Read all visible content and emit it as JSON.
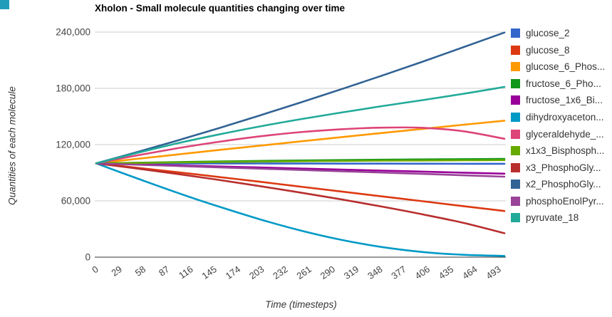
{
  "ui": {
    "background": "#ffffff",
    "corner_square_color": "#1f9cba",
    "gridline_color": "#cccccc",
    "baseline_color": "#333333",
    "tick_label_color": "#444444",
    "title_color": "#000000",
    "axis_title_color": "#333333",
    "legend_text_color": "#333333"
  },
  "chart_data": {
    "type": "line",
    "title": "Xholon - Small molecule quantities changing over time",
    "xlabel": "Time (timesteps)",
    "ylabel": "Quantities of each molecule",
    "grid": true,
    "legend_position": "right",
    "xlim": [
      0,
      502
    ],
    "ylim": [
      0,
      240000
    ],
    "x_tick_labels": [
      "0",
      "29",
      "58",
      "87",
      "116",
      "145",
      "174",
      "203",
      "232",
      "261",
      "290",
      "319",
      "348",
      "377",
      "406",
      "435",
      "464",
      "493"
    ],
    "x_ticks": [
      0,
      29,
      58,
      87,
      116,
      145,
      174,
      203,
      232,
      261,
      290,
      319,
      348,
      377,
      406,
      435,
      464,
      493
    ],
    "y_ticks": [
      0,
      60000,
      120000,
      180000,
      240000
    ],
    "y_tick_labels": [
      "0",
      "60,000",
      "120,000",
      "180,000",
      "240,000"
    ],
    "x": [
      0,
      50,
      100,
      150,
      200,
      250,
      300,
      350,
      400,
      450,
      500
    ],
    "series": [
      {
        "name": "glucose_2",
        "color": "#3366CC",
        "values": [
          100000,
          100000,
          99950,
          99900,
          99850,
          99800,
          99750,
          99700,
          99650,
          99600,
          99550
        ]
      },
      {
        "name": "glucose_8",
        "color": "#DC3912",
        "values": [
          100000,
          95300,
          90500,
          85500,
          80400,
          75200,
          70000,
          64800,
          59600,
          54400,
          49200
        ]
      },
      {
        "name": "glucose_6_Phos...",
        "color": "#FF9900",
        "values": [
          100000,
          104800,
          109500,
          114200,
          118800,
          123400,
          127900,
          132400,
          136800,
          141200,
          145500
        ]
      },
      {
        "name": "fructose_6_Pho...",
        "color": "#109618",
        "values": [
          100000,
          100700,
          101400,
          102000,
          102600,
          103100,
          103500,
          103900,
          104200,
          104500,
          104700
        ]
      },
      {
        "name": "fructose_1x6_Bi...",
        "color": "#990099",
        "values": [
          100000,
          98900,
          97800,
          96700,
          95600,
          94500,
          93400,
          92300,
          91200,
          90100,
          89000
        ]
      },
      {
        "name": "dihydroxyaceton...",
        "color": "#0099C6",
        "values": [
          100000,
          84000,
          68500,
          54000,
          40500,
          28500,
          18500,
          10800,
          5500,
          2500,
          1300
        ]
      },
      {
        "name": "glyceraldehyde_...",
        "color": "#DD4477",
        "values": [
          100000,
          108500,
          116200,
          123000,
          128800,
          133300,
          136400,
          138100,
          137900,
          134200,
          126200
        ]
      },
      {
        "name": "x1x3_Bisphosph...",
        "color": "#66AA00",
        "values": [
          100000,
          100500,
          101000,
          101500,
          101900,
          102300,
          102600,
          102900,
          103100,
          103300,
          103500
        ]
      },
      {
        "name": "x3_PhosphoGly...",
        "color": "#B82E2E",
        "values": [
          100000,
          94500,
          88600,
          82400,
          75800,
          68900,
          61700,
          53900,
          45600,
          36500,
          25500
        ]
      },
      {
        "name": "x2_PhosphoGly...",
        "color": "#316395",
        "values": [
          100000,
          112000,
          124500,
          137500,
          151000,
          164800,
          179000,
          193500,
          208500,
          224000,
          239500
        ]
      },
      {
        "name": "phosphoEnolPyr...",
        "color": "#994499",
        "values": [
          100000,
          98600,
          97200,
          95800,
          94400,
          93000,
          91600,
          90200,
          88800,
          87300,
          85800
        ]
      },
      {
        "name": "pyruvate_18",
        "color": "#22AA99",
        "values": [
          100000,
          111000,
          121500,
          130800,
          139300,
          147000,
          154200,
          161000,
          167500,
          174200,
          181500
        ]
      }
    ]
  }
}
